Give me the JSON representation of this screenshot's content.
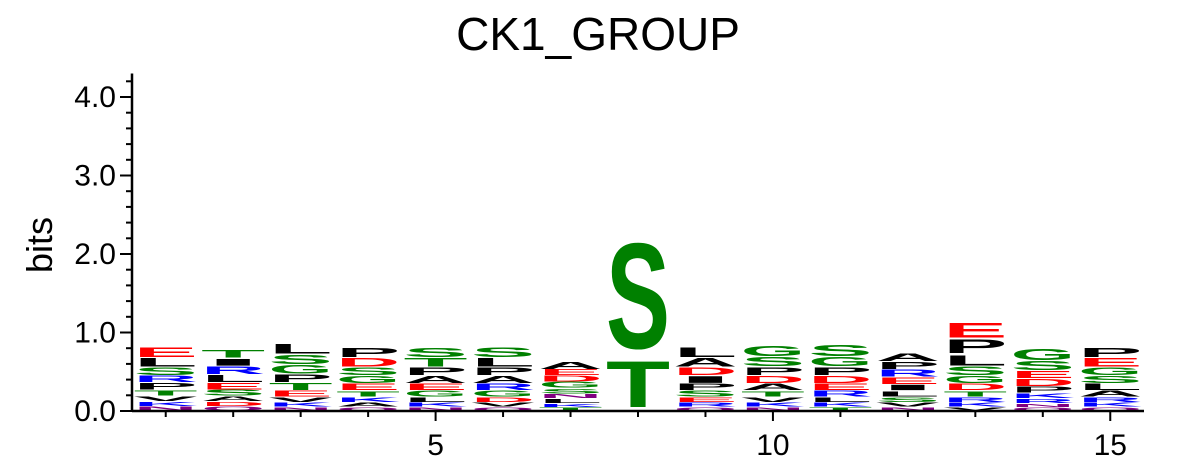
{
  "chart_data": {
    "type": "sequence_logo",
    "title": "CK1_GROUP",
    "ylabel": "bits",
    "xlabel": "",
    "ylim": [
      0,
      4.3
    ],
    "y_ticks": [
      "0.0",
      "1.0",
      "2.0",
      "3.0",
      "4.0"
    ],
    "y_tick_values": [
      0,
      1,
      2,
      3,
      4
    ],
    "x_ticks": [
      "5",
      "10",
      "15"
    ],
    "x_tick_values": [
      5,
      10,
      15
    ],
    "x_range": [
      1,
      15
    ],
    "colors": {
      "acidic": "#ff0000",
      "polar": "#008000",
      "basic": "#0000ff",
      "hydrophobic": "#000000",
      "amide": "#800080"
    },
    "positions": [
      {
        "pos": 1,
        "stack": [
          {
            "letter": "N",
            "color": "#800080",
            "bits": 0.06
          },
          {
            "letter": "K",
            "color": "#0000ff",
            "bits": 0.06
          },
          {
            "letter": "V",
            "color": "#000000",
            "bits": 0.07
          },
          {
            "letter": "T",
            "color": "#008000",
            "bits": 0.08
          },
          {
            "letter": "P",
            "color": "#000000",
            "bits": 0.09
          },
          {
            "letter": "R",
            "color": "#0000ff",
            "bits": 0.09
          },
          {
            "letter": "S",
            "color": "#008000",
            "bits": 0.11
          },
          {
            "letter": "L",
            "color": "#000000",
            "bits": 0.12
          },
          {
            "letter": "E",
            "color": "#ff0000",
            "bits": 0.14
          }
        ]
      },
      {
        "pos": 2,
        "stack": [
          {
            "letter": "Q",
            "color": "#800080",
            "bits": 0.06
          },
          {
            "letter": "D",
            "color": "#ff0000",
            "bits": 0.06
          },
          {
            "letter": "A",
            "color": "#000000",
            "bits": 0.07
          },
          {
            "letter": "S",
            "color": "#008000",
            "bits": 0.08
          },
          {
            "letter": "E",
            "color": "#ff0000",
            "bits": 0.09
          },
          {
            "letter": "L",
            "color": "#000000",
            "bits": 0.1
          },
          {
            "letter": "R",
            "color": "#0000ff",
            "bits": 0.11
          },
          {
            "letter": "I",
            "color": "#000000",
            "bits": 0.1
          },
          {
            "letter": "T",
            "color": "#008000",
            "bits": 0.11
          }
        ]
      },
      {
        "pos": 3,
        "stack": [
          {
            "letter": "N",
            "color": "#800080",
            "bits": 0.05
          },
          {
            "letter": "K",
            "color": "#0000ff",
            "bits": 0.06
          },
          {
            "letter": "V",
            "color": "#000000",
            "bits": 0.07
          },
          {
            "letter": "E",
            "color": "#ff0000",
            "bits": 0.08
          },
          {
            "letter": "T",
            "color": "#008000",
            "bits": 0.1
          },
          {
            "letter": "P",
            "color": "#000000",
            "bits": 0.11
          },
          {
            "letter": "G",
            "color": "#008000",
            "bits": 0.12
          },
          {
            "letter": "S",
            "color": "#008000",
            "bits": 0.13
          },
          {
            "letter": "L",
            "color": "#000000",
            "bits": 0.14
          }
        ]
      },
      {
        "pos": 4,
        "stack": [
          {
            "letter": "Q",
            "color": "#800080",
            "bits": 0.05
          },
          {
            "letter": "A",
            "color": "#000000",
            "bits": 0.06
          },
          {
            "letter": "K",
            "color": "#0000ff",
            "bits": 0.07
          },
          {
            "letter": "T",
            "color": "#008000",
            "bits": 0.08
          },
          {
            "letter": "E",
            "color": "#ff0000",
            "bits": 0.09
          },
          {
            "letter": "G",
            "color": "#008000",
            "bits": 0.1
          },
          {
            "letter": "S",
            "color": "#008000",
            "bits": 0.11
          },
          {
            "letter": "D",
            "color": "#ff0000",
            "bits": 0.12
          },
          {
            "letter": "P",
            "color": "#000000",
            "bits": 0.13
          }
        ]
      },
      {
        "pos": 5,
        "stack": [
          {
            "letter": "N",
            "color": "#800080",
            "bits": 0.05
          },
          {
            "letter": "K",
            "color": "#0000ff",
            "bits": 0.06
          },
          {
            "letter": "L",
            "color": "#000000",
            "bits": 0.07
          },
          {
            "letter": "G",
            "color": "#008000",
            "bits": 0.08
          },
          {
            "letter": "E",
            "color": "#ff0000",
            "bits": 0.09
          },
          {
            "letter": "A",
            "color": "#000000",
            "bits": 0.1
          },
          {
            "letter": "P",
            "color": "#000000",
            "bits": 0.11
          },
          {
            "letter": "T",
            "color": "#008000",
            "bits": 0.12
          },
          {
            "letter": "S",
            "color": "#008000",
            "bits": 0.13
          }
        ]
      },
      {
        "pos": 6,
        "stack": [
          {
            "letter": "Q",
            "color": "#800080",
            "bits": 0.05
          },
          {
            "letter": "V",
            "color": "#000000",
            "bits": 0.06
          },
          {
            "letter": "D",
            "color": "#ff0000",
            "bits": 0.07
          },
          {
            "letter": "G",
            "color": "#008000",
            "bits": 0.08
          },
          {
            "letter": "R",
            "color": "#0000ff",
            "bits": 0.09
          },
          {
            "letter": "A",
            "color": "#000000",
            "bits": 0.1
          },
          {
            "letter": "P",
            "color": "#000000",
            "bits": 0.11
          },
          {
            "letter": "L",
            "color": "#000000",
            "bits": 0.12
          },
          {
            "letter": "S",
            "color": "#008000",
            "bits": 0.14
          }
        ]
      },
      {
        "pos": 7,
        "stack": [
          {
            "letter": "T",
            "color": "#008000",
            "bits": 0.05
          },
          {
            "letter": "K",
            "color": "#0000ff",
            "bits": 0.05
          },
          {
            "letter": "L",
            "color": "#000000",
            "bits": 0.06
          },
          {
            "letter": "N",
            "color": "#800080",
            "bits": 0.06
          },
          {
            "letter": "S",
            "color": "#008000",
            "bits": 0.07
          },
          {
            "letter": "G",
            "color": "#008000",
            "bits": 0.08
          },
          {
            "letter": "D",
            "color": "#ff0000",
            "bits": 0.08
          },
          {
            "letter": "E",
            "color": "#ff0000",
            "bits": 0.08
          },
          {
            "letter": "A",
            "color": "#000000",
            "bits": 0.1
          }
        ]
      },
      {
        "pos": 8,
        "stack": [
          {
            "letter": "T",
            "color": "#008000",
            "bits": 0.68
          },
          {
            "letter": "S",
            "color": "#008000",
            "bits": 1.55
          }
        ]
      },
      {
        "pos": 9,
        "stack": [
          {
            "letter": "Q",
            "color": "#800080",
            "bits": 0.05
          },
          {
            "letter": "R",
            "color": "#0000ff",
            "bits": 0.06
          },
          {
            "letter": "E",
            "color": "#ff0000",
            "bits": 0.07
          },
          {
            "letter": "S",
            "color": "#008000",
            "bits": 0.08
          },
          {
            "letter": "P",
            "color": "#000000",
            "bits": 0.09
          },
          {
            "letter": "I",
            "color": "#000000",
            "bits": 0.1
          },
          {
            "letter": "D",
            "color": "#ff0000",
            "bits": 0.11
          },
          {
            "letter": "A",
            "color": "#000000",
            "bits": 0.12
          },
          {
            "letter": "L",
            "color": "#000000",
            "bits": 0.14
          }
        ]
      },
      {
        "pos": 10,
        "stack": [
          {
            "letter": "N",
            "color": "#800080",
            "bits": 0.05
          },
          {
            "letter": "K",
            "color": "#0000ff",
            "bits": 0.06
          },
          {
            "letter": "V",
            "color": "#000000",
            "bits": 0.07
          },
          {
            "letter": "T",
            "color": "#008000",
            "bits": 0.08
          },
          {
            "letter": "A",
            "color": "#000000",
            "bits": 0.09
          },
          {
            "letter": "D",
            "color": "#ff0000",
            "bits": 0.1
          },
          {
            "letter": "P",
            "color": "#000000",
            "bits": 0.11
          },
          {
            "letter": "S",
            "color": "#008000",
            "bits": 0.13
          },
          {
            "letter": "G",
            "color": "#008000",
            "bits": 0.15
          }
        ]
      },
      {
        "pos": 11,
        "stack": [
          {
            "letter": "T",
            "color": "#008000",
            "bits": 0.05
          },
          {
            "letter": "K",
            "color": "#0000ff",
            "bits": 0.06
          },
          {
            "letter": "L",
            "color": "#000000",
            "bits": 0.07
          },
          {
            "letter": "R",
            "color": "#0000ff",
            "bits": 0.08
          },
          {
            "letter": "E",
            "color": "#ff0000",
            "bits": 0.09
          },
          {
            "letter": "D",
            "color": "#ff0000",
            "bits": 0.1
          },
          {
            "letter": "P",
            "color": "#000000",
            "bits": 0.11
          },
          {
            "letter": "G",
            "color": "#008000",
            "bits": 0.13
          },
          {
            "letter": "S",
            "color": "#008000",
            "bits": 0.16
          }
        ]
      },
      {
        "pos": 12,
        "stack": [
          {
            "letter": "N",
            "color": "#800080",
            "bits": 0.05
          },
          {
            "letter": "V",
            "color": "#000000",
            "bits": 0.06
          },
          {
            "letter": "S",
            "color": "#008000",
            "bits": 0.07
          },
          {
            "letter": "L",
            "color": "#000000",
            "bits": 0.08
          },
          {
            "letter": "I",
            "color": "#000000",
            "bits": 0.08
          },
          {
            "letter": "E",
            "color": "#ff0000",
            "bits": 0.09
          },
          {
            "letter": "R",
            "color": "#0000ff",
            "bits": 0.1
          },
          {
            "letter": "P",
            "color": "#000000",
            "bits": 0.1
          },
          {
            "letter": "A",
            "color": "#000000",
            "bits": 0.11
          }
        ]
      },
      {
        "pos": 13,
        "stack": [
          {
            "letter": "V",
            "color": "#000000",
            "bits": 0.05
          },
          {
            "letter": "K",
            "color": "#0000ff",
            "bits": 0.06
          },
          {
            "letter": "R",
            "color": "#0000ff",
            "bits": 0.07
          },
          {
            "letter": "T",
            "color": "#008000",
            "bits": 0.08
          },
          {
            "letter": "D",
            "color": "#ff0000",
            "bits": 0.09
          },
          {
            "letter": "G",
            "color": "#008000",
            "bits": 0.1
          },
          {
            "letter": "S",
            "color": "#008000",
            "bits": 0.12
          },
          {
            "letter": "L",
            "color": "#000000",
            "bits": 0.15
          },
          {
            "letter": "P",
            "color": "#000000",
            "bits": 0.2
          },
          {
            "letter": "E",
            "color": "#ff0000",
            "bits": 0.22
          }
        ]
      },
      {
        "pos": 14,
        "stack": [
          {
            "letter": "Q",
            "color": "#800080",
            "bits": 0.05
          },
          {
            "letter": "N",
            "color": "#800080",
            "bits": 0.05
          },
          {
            "letter": "R",
            "color": "#0000ff",
            "bits": 0.06
          },
          {
            "letter": "K",
            "color": "#0000ff",
            "bits": 0.07
          },
          {
            "letter": "P",
            "color": "#000000",
            "bits": 0.08
          },
          {
            "letter": "D",
            "color": "#ff0000",
            "bits": 0.1
          },
          {
            "letter": "E",
            "color": "#ff0000",
            "bits": 0.1
          },
          {
            "letter": "S",
            "color": "#008000",
            "bits": 0.13
          },
          {
            "letter": "G",
            "color": "#008000",
            "bits": 0.16
          }
        ]
      },
      {
        "pos": 15,
        "stack": [
          {
            "letter": "Q",
            "color": "#800080",
            "bits": 0.05
          },
          {
            "letter": "K",
            "color": "#0000ff",
            "bits": 0.06
          },
          {
            "letter": "R",
            "color": "#0000ff",
            "bits": 0.07
          },
          {
            "letter": "A",
            "color": "#000000",
            "bits": 0.08
          },
          {
            "letter": "L",
            "color": "#000000",
            "bits": 0.09
          },
          {
            "letter": "S",
            "color": "#008000",
            "bits": 0.1
          },
          {
            "letter": "G",
            "color": "#008000",
            "bits": 0.11
          },
          {
            "letter": "E",
            "color": "#ff0000",
            "bits": 0.12
          },
          {
            "letter": "P",
            "color": "#000000",
            "bits": 0.13
          }
        ]
      }
    ]
  }
}
